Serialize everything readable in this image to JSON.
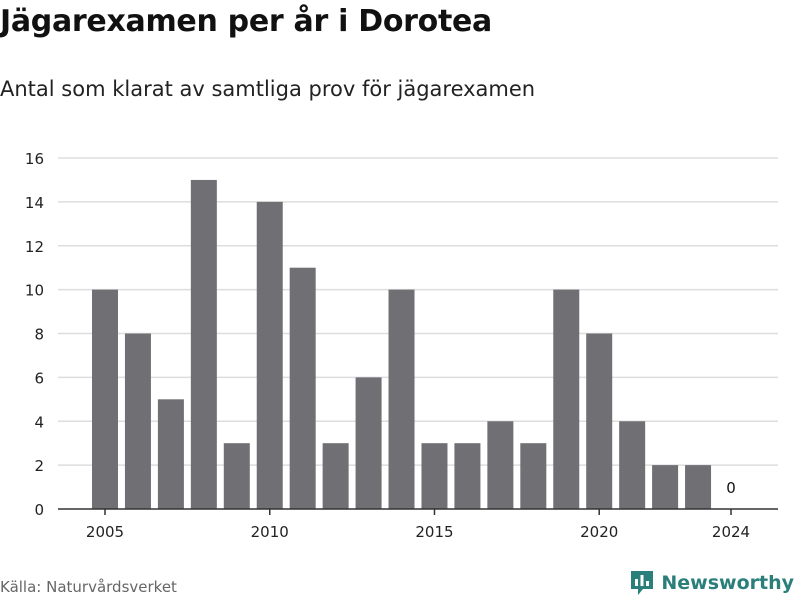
{
  "header": {
    "title": "Jägarexamen per år i Dorotea",
    "subtitle": "Antal som klarat av samtliga prov för jägarexamen"
  },
  "footer": {
    "source": "Källa: Naturvårdsverket",
    "brand": "Newsworthy",
    "brand_icon": "newsworthy-logo-icon",
    "brand_color": "#2a7f7a"
  },
  "chart_data": {
    "type": "bar",
    "title": "Jägarexamen per år i Dorotea",
    "subtitle": "Antal som klarat av samtliga prov för jägarexamen",
    "xlabel": "",
    "ylabel": "",
    "categories": [
      2005,
      2006,
      2007,
      2008,
      2009,
      2010,
      2011,
      2012,
      2013,
      2014,
      2015,
      2016,
      2017,
      2018,
      2019,
      2020,
      2021,
      2022,
      2023,
      2024
    ],
    "values": [
      10,
      8,
      5,
      15,
      3,
      14,
      11,
      3,
      6,
      10,
      3,
      3,
      4,
      3,
      10,
      8,
      4,
      2,
      2,
      0
    ],
    "x_ticks": [
      2005,
      2010,
      2015,
      2020,
      2024
    ],
    "y_ticks": [
      0,
      2,
      4,
      6,
      8,
      10,
      12,
      14,
      16
    ],
    "ylim": [
      0,
      16
    ],
    "grid": true,
    "legend": "none",
    "data_labels": [
      {
        "category": 2024,
        "text": "0"
      }
    ],
    "bar_color": "#706f74",
    "grid_color": "#dddddd",
    "axis_color": "#333333"
  }
}
